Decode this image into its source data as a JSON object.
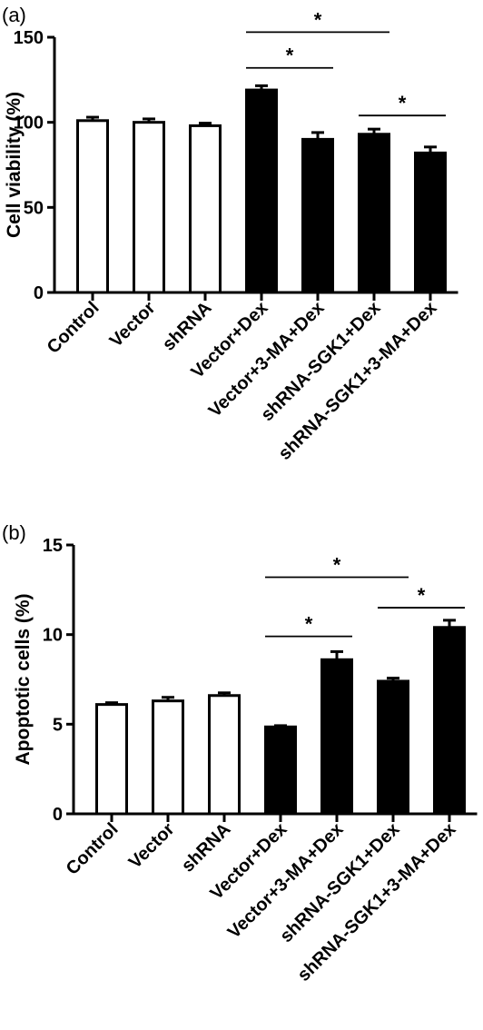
{
  "chart_data": [
    {
      "panel": "(a)",
      "type": "bar",
      "ylabel": "Cell viability (%)",
      "ylim": [
        0,
        150
      ],
      "yticks": [
        0,
        50,
        100,
        150
      ],
      "categories": [
        "Control",
        "Vector",
        "shRNA",
        "Vector+Dex",
        "Vector+3-MA+Dex",
        "shRNA-SGK1+Dex",
        "shRNA-SGK1+3-MA+Dex"
      ],
      "values": [
        101,
        100,
        98,
        119,
        90,
        93,
        82
      ],
      "errors": [
        2,
        2,
        1.5,
        2.5,
        4,
        3,
        3.5
      ],
      "fills": [
        "white",
        "white",
        "white",
        "black",
        "black",
        "black",
        "black"
      ],
      "significance": [
        {
          "from": 3,
          "to": 5,
          "value": 153,
          "label": "*"
        },
        {
          "from": 3,
          "to": 4,
          "value": 132,
          "label": "*"
        },
        {
          "from": 5,
          "to": 6,
          "value": 104,
          "label": "*"
        }
      ]
    },
    {
      "panel": "(b)",
      "type": "bar",
      "ylabel": "Apoptotic cells (%)",
      "ylim": [
        0,
        15
      ],
      "yticks": [
        0,
        5,
        10,
        15
      ],
      "categories": [
        "Control",
        "Vector",
        "shRNA",
        "Vector+Dex",
        "Vector+3-MA+Dex",
        "shRNA-SGK1+Dex",
        "shRNA-SGK1+3-MA+Dex"
      ],
      "values": [
        6.1,
        6.3,
        6.6,
        4.85,
        8.6,
        7.4,
        10.4
      ],
      "errors": [
        0.1,
        0.2,
        0.15,
        0.07,
        0.45,
        0.17,
        0.4
      ],
      "fills": [
        "white",
        "white",
        "white",
        "black",
        "black",
        "black",
        "black"
      ],
      "significance": [
        {
          "from": 3,
          "to": 5,
          "value": 13.2,
          "label": "*"
        },
        {
          "from": 3,
          "to": 4,
          "value": 9.9,
          "label": "*"
        },
        {
          "from": 5,
          "to": 6,
          "value": 11.5,
          "label": "*"
        }
      ]
    }
  ],
  "colors": {
    "axis": "#000000",
    "bar_dark": "#000000",
    "bar_light": "#ffffff"
  }
}
